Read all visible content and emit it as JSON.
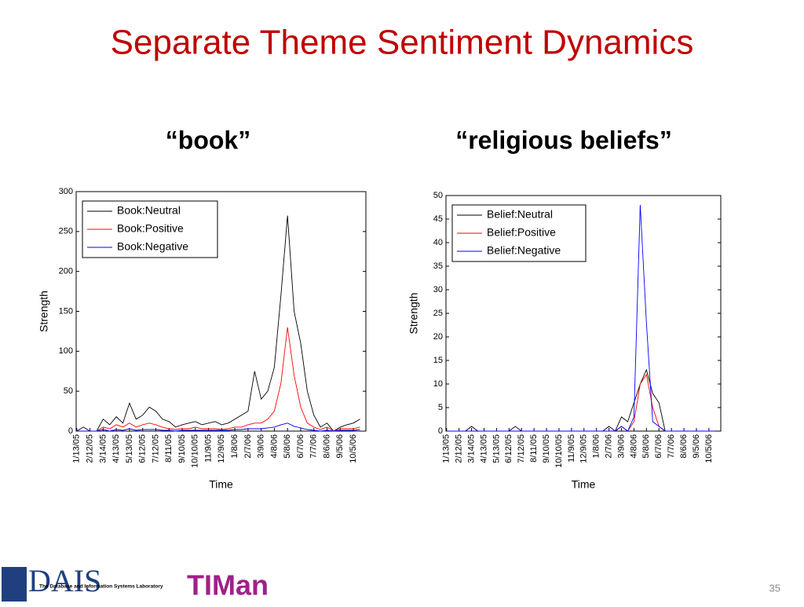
{
  "title": "Separate Theme Sentiment Dynamics",
  "page_number": "35",
  "logo": {
    "left": "DAIS",
    "caption": "The Database and Information Systems Laboratory",
    "right": "TIMan"
  },
  "chart_data": [
    {
      "type": "line",
      "title": "“book”",
      "xlabel": "Time",
      "ylabel": "Strength",
      "categories": [
        "1/13/05",
        null,
        "2/12/05",
        null,
        "3/14/05",
        null,
        "4/13/05",
        null,
        "5/13/05",
        null,
        "6/12/05",
        null,
        "7/12/05",
        null,
        "8/11/05",
        null,
        "9/10/05",
        null,
        "10/10/05",
        null,
        "11/9/05",
        null,
        "12/9/05",
        null,
        "1/8/06",
        null,
        "2/7/06",
        null,
        "3/9/06",
        null,
        "4/8/06",
        null,
        "5/8/06",
        null,
        "6/7/06",
        null,
        "7/7/06",
        null,
        "8/6/06",
        null,
        "9/5/06",
        null,
        "10/5/06",
        null
      ],
      "ylim": [
        0,
        300
      ],
      "yticks": [
        0,
        50,
        100,
        150,
        200,
        250,
        300
      ],
      "legend": "upper left",
      "series": [
        {
          "name": "Book:Neutral",
          "color": "#000000",
          "values": [
            0,
            5,
            0,
            0,
            15,
            8,
            18,
            10,
            35,
            15,
            20,
            30,
            25,
            15,
            12,
            5,
            8,
            10,
            12,
            8,
            10,
            12,
            8,
            10,
            15,
            20,
            25,
            75,
            40,
            50,
            80,
            170,
            270,
            150,
            110,
            50,
            20,
            5,
            10,
            0,
            5,
            8,
            10,
            15
          ]
        },
        {
          "name": "Book:Positive",
          "color": "#ff0000",
          "values": [
            0,
            0,
            0,
            0,
            5,
            3,
            8,
            5,
            10,
            5,
            8,
            10,
            8,
            5,
            3,
            2,
            3,
            3,
            5,
            3,
            3,
            3,
            2,
            3,
            5,
            5,
            8,
            10,
            10,
            15,
            25,
            60,
            130,
            70,
            30,
            10,
            5,
            2,
            5,
            0,
            3,
            3,
            3,
            5
          ]
        },
        {
          "name": "Book:Negative",
          "color": "#0000ff",
          "values": [
            0,
            0,
            0,
            0,
            2,
            0,
            2,
            1,
            3,
            1,
            2,
            2,
            2,
            1,
            1,
            0,
            1,
            1,
            1,
            1,
            1,
            1,
            1,
            1,
            2,
            2,
            3,
            3,
            3,
            4,
            5,
            8,
            10,
            6,
            4,
            2,
            1,
            0,
            1,
            0,
            1,
            1,
            1,
            2
          ]
        }
      ]
    },
    {
      "type": "line",
      "title": "“religious beliefs”",
      "xlabel": "Time",
      "ylabel": "Strength",
      "categories": [
        "1/13/05",
        null,
        "2/12/05",
        null,
        "3/14/05",
        null,
        "4/13/05",
        null,
        "5/13/05",
        null,
        "6/12/05",
        null,
        "7/12/05",
        null,
        "8/11/05",
        null,
        "9/10/05",
        null,
        "10/10/05",
        null,
        "11/9/05",
        null,
        "12/9/05",
        null,
        "1/8/06",
        null,
        "2/7/06",
        null,
        "3/9/06",
        null,
        "4/8/06",
        null,
        "5/8/06",
        null,
        "6/7/06",
        null,
        "7/7/06",
        null,
        "8/6/06",
        null,
        "9/5/06",
        null,
        "10/5/06",
        null
      ],
      "ylim": [
        0,
        50
      ],
      "yticks": [
        0,
        5,
        10,
        15,
        20,
        25,
        30,
        35,
        40,
        45,
        50
      ],
      "legend": "upper left",
      "series": [
        {
          "name": "Belief:Neutral",
          "color": "#000000",
          "values": [
            0,
            0,
            0,
            0,
            1,
            0,
            0,
            0,
            0,
            0,
            0,
            1,
            0,
            0,
            0,
            0,
            0,
            0,
            0,
            0,
            0,
            0,
            0,
            0,
            0,
            0,
            1,
            0,
            3,
            2,
            6,
            10,
            13,
            8,
            6,
            0,
            0,
            0,
            0,
            0,
            0,
            0,
            0,
            0
          ]
        },
        {
          "name": "Belief:Positive",
          "color": "#ff0000",
          "values": [
            0,
            0,
            0,
            0,
            0,
            0,
            0,
            0,
            0,
            0,
            0,
            0,
            0,
            0,
            0,
            0,
            0,
            0,
            0,
            0,
            0,
            0,
            0,
            0,
            0,
            0,
            0,
            0,
            1,
            0,
            2,
            10,
            12,
            5,
            1,
            0,
            0,
            0,
            0,
            0,
            0,
            0,
            0,
            0
          ]
        },
        {
          "name": "Belief:Negative",
          "color": "#0000ff",
          "values": [
            0,
            0,
            0,
            0,
            0,
            0,
            0,
            0,
            0,
            0,
            0,
            0,
            0,
            0,
            0,
            0,
            0,
            0,
            0,
            0,
            0,
            0,
            0,
            0,
            0,
            0,
            0,
            0,
            1,
            0,
            3,
            48,
            23,
            2,
            1,
            0,
            0,
            0,
            0,
            0,
            0,
            0,
            0,
            0
          ]
        }
      ]
    }
  ]
}
